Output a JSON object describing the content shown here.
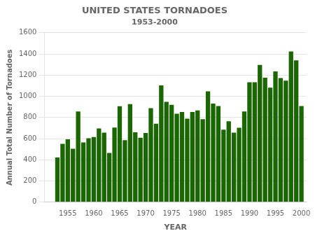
{
  "chart_data": {
    "type": "bar",
    "title": "UNITED STATES TORNADOES",
    "subtitle": "1953-2000",
    "xlabel": "YEAR",
    "ylabel": "Annual Total Number of Tornadoes",
    "x": [
      1953,
      1954,
      1955,
      1956,
      1957,
      1958,
      1959,
      1960,
      1961,
      1962,
      1963,
      1964,
      1965,
      1966,
      1967,
      1968,
      1969,
      1970,
      1971,
      1972,
      1973,
      1974,
      1975,
      1976,
      1977,
      1978,
      1979,
      1980,
      1981,
      1982,
      1983,
      1984,
      1985,
      1986,
      1987,
      1988,
      1989,
      1990,
      1991,
      1992,
      1993,
      1994,
      1995,
      1996,
      1997,
      1998,
      1999,
      2000
    ],
    "values": [
      421,
      550,
      593,
      504,
      856,
      564,
      604,
      616,
      697,
      657,
      464,
      704,
      906,
      585,
      926,
      660,
      608,
      653,
      888,
      741,
      1102,
      947,
      919,
      835,
      852,
      788,
      852,
      866,
      783,
      1046,
      931,
      907,
      684,
      764,
      656,
      702,
      856,
      1133,
      1132,
      1297,
      1176,
      1082,
      1235,
      1173,
      1148,
      1424,
      1340,
      907
    ],
    "color": "#1a6600",
    "xlim": [
      1950.5,
      2001.0
    ],
    "xticks": [
      1955,
      1960,
      1965,
      1970,
      1975,
      1980,
      1985,
      1990,
      1995,
      2000
    ],
    "ylim": [
      0,
      1600
    ],
    "yticks": [
      0,
      200,
      400,
      600,
      800,
      1000,
      1200,
      1400,
      1600
    ],
    "grid": "y"
  }
}
